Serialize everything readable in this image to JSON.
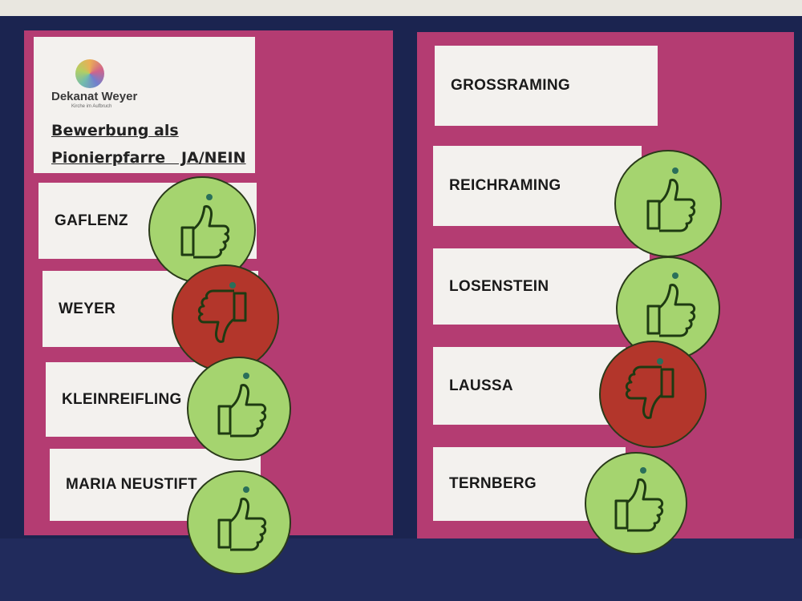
{
  "header": {
    "logo_text": "Dekanat Weyer",
    "logo_subtitle": "Kirche im Aufbruch",
    "title_line1": "Bewerbung als",
    "title_line2": "Pionierpfarre   JA/NEIN"
  },
  "left": [
    {
      "name": "GAFLENZ",
      "vote": "up"
    },
    {
      "name": "WEYER",
      "vote": "down"
    },
    {
      "name": "KLEINREIFLING",
      "vote": "up"
    },
    {
      "name": "MARIA NEUSTIFT",
      "vote": "up"
    }
  ],
  "right": [
    {
      "name": "GROSSRAMING",
      "vote": "none"
    },
    {
      "name": "REICHRAMING",
      "vote": "up"
    },
    {
      "name": "LOSENSTEIN",
      "vote": "up"
    },
    {
      "name": "LAUSSA",
      "vote": "down"
    },
    {
      "name": "TERNBERG",
      "vote": "up"
    }
  ],
  "colors": {
    "board": "#1b2450",
    "panel": "#b43c72",
    "thumbs_up": "#a5d46f",
    "thumbs_down": "#b3362b"
  }
}
